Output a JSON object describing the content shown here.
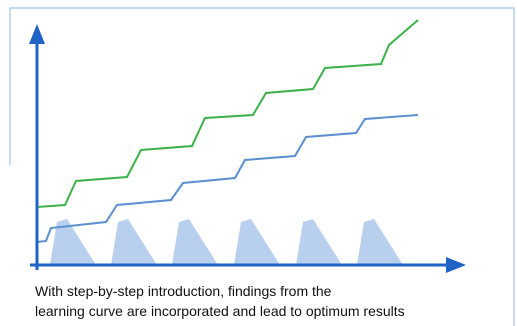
{
  "caption": {
    "lines": [
      "With step-by-step introduction, findings from the",
      "learning curve are incorporated and lead to optimum results"
    ]
  }
}
